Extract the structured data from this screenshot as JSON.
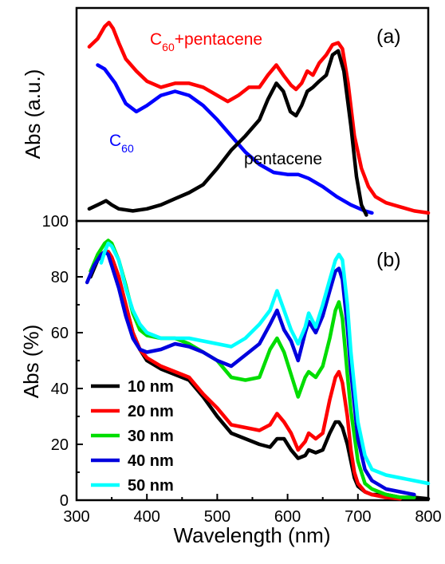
{
  "chart_data": [
    {
      "type": "line",
      "panel_label": "(a)",
      "ylabel": "Abs (a.u.)",
      "xlim": [
        300,
        800
      ],
      "yticks_visible": false,
      "annotations": [
        {
          "text": "C",
          "sub": "60",
          "suffix": "+pentacene",
          "color": "#ff0000"
        },
        {
          "text": "C",
          "sub": "60",
          "suffix": "",
          "color": "#0000ff"
        },
        {
          "text": "pentacene",
          "sub": "",
          "suffix": "",
          "color": "#000000"
        }
      ],
      "series": [
        {
          "color": "#ff0000",
          "x": [
            318,
            330,
            340,
            346,
            352,
            360,
            370,
            385,
            400,
            420,
            440,
            460,
            480,
            500,
            515,
            530,
            545,
            560,
            572,
            584,
            594,
            605,
            612,
            620,
            628,
            636,
            645,
            655,
            664,
            672,
            678,
            686,
            695,
            705,
            715,
            725,
            740,
            760,
            780,
            800
          ],
          "y": [
            0.84,
            0.88,
            0.94,
            0.96,
            0.93,
            0.86,
            0.78,
            0.72,
            0.67,
            0.64,
            0.66,
            0.66,
            0.64,
            0.6,
            0.57,
            0.6,
            0.64,
            0.64,
            0.7,
            0.75,
            0.7,
            0.65,
            0.63,
            0.66,
            0.72,
            0.7,
            0.76,
            0.8,
            0.85,
            0.86,
            0.83,
            0.66,
            0.4,
            0.24,
            0.15,
            0.1,
            0.07,
            0.05,
            0.03,
            0.02
          ]
        },
        {
          "color": "#0000ff",
          "x": [
            330,
            340,
            355,
            370,
            385,
            400,
            420,
            440,
            460,
            480,
            500,
            520,
            540,
            560,
            580,
            600,
            615,
            630,
            650,
            670,
            690,
            710,
            720
          ],
          "y": [
            0.75,
            0.73,
            0.66,
            0.56,
            0.52,
            0.55,
            0.6,
            0.62,
            0.6,
            0.55,
            0.48,
            0.4,
            0.32,
            0.26,
            0.22,
            0.21,
            0.21,
            0.19,
            0.15,
            0.1,
            0.06,
            0.03,
            0.02
          ]
        },
        {
          "color": "#000000",
          "x": [
            318,
            330,
            342,
            350,
            360,
            380,
            400,
            420,
            440,
            460,
            480,
            500,
            520,
            540,
            560,
            572,
            584,
            594,
            604,
            612,
            620,
            628,
            636,
            645,
            655,
            664,
            672,
            680,
            690,
            698,
            705,
            712
          ],
          "y": [
            0.04,
            0.06,
            0.08,
            0.06,
            0.04,
            0.03,
            0.04,
            0.06,
            0.09,
            0.12,
            0.16,
            0.24,
            0.33,
            0.4,
            0.48,
            0.58,
            0.66,
            0.62,
            0.52,
            0.5,
            0.55,
            0.62,
            0.64,
            0.67,
            0.7,
            0.8,
            0.82,
            0.72,
            0.45,
            0.2,
            0.06,
            0.01
          ]
        }
      ]
    },
    {
      "type": "line",
      "panel_label": "(b)",
      "xlabel": "Wavelength (nm)",
      "ylabel": "Abs (%)",
      "xlim": [
        300,
        800
      ],
      "ylim": [
        0,
        100
      ],
      "xticks": [
        300,
        400,
        500,
        600,
        700,
        800
      ],
      "yticks": [
        0,
        20,
        40,
        60,
        80,
        100
      ],
      "legend_position": "lower-left",
      "series": [
        {
          "name": "10 nm",
          "color": "#000000",
          "x": [
            320,
            330,
            340,
            345,
            350,
            360,
            370,
            380,
            390,
            400,
            420,
            440,
            460,
            480,
            500,
            520,
            540,
            560,
            575,
            585,
            595,
            605,
            615,
            625,
            630,
            640,
            650,
            660,
            668,
            673,
            678,
            685,
            690,
            695,
            700,
            710,
            720,
            740,
            760,
            780,
            800
          ],
          "y": [
            80,
            86,
            89,
            89,
            87,
            80,
            70,
            60,
            54,
            50,
            47,
            45,
            43,
            37,
            30,
            24,
            22,
            20,
            19,
            22,
            22,
            18,
            15,
            16,
            18,
            17,
            18,
            24,
            28,
            28,
            26,
            20,
            14,
            8,
            5,
            3,
            2,
            2,
            1,
            1,
            0.5
          ]
        },
        {
          "name": "20 nm",
          "color": "#ff0000",
          "x": [
            320,
            330,
            340,
            345,
            350,
            360,
            370,
            380,
            390,
            400,
            420,
            440,
            460,
            480,
            500,
            520,
            540,
            560,
            575,
            585,
            595,
            605,
            615,
            625,
            630,
            640,
            650,
            660,
            668,
            673,
            678,
            685,
            690,
            695,
            700,
            710,
            720,
            740,
            760
          ],
          "y": [
            82,
            87,
            89,
            89,
            87,
            80,
            70,
            60,
            54,
            51,
            48,
            46,
            44,
            38,
            33,
            27,
            26,
            25,
            27,
            31,
            28,
            24,
            18,
            21,
            24,
            22,
            24,
            36,
            44,
            46,
            42,
            30,
            18,
            10,
            6,
            3,
            2,
            1,
            0.5
          ]
        },
        {
          "name": "30 nm",
          "color": "#00dd00",
          "x": [
            320,
            330,
            340,
            345,
            350,
            360,
            370,
            380,
            390,
            400,
            420,
            440,
            460,
            480,
            500,
            520,
            540,
            560,
            575,
            585,
            595,
            605,
            615,
            625,
            630,
            640,
            650,
            660,
            668,
            673,
            678,
            685,
            690,
            700,
            710,
            720,
            740,
            760,
            780
          ],
          "y": [
            82,
            88,
            92,
            93,
            92,
            86,
            77,
            67,
            61,
            59,
            58,
            58,
            56,
            53,
            50,
            44,
            43,
            44,
            54,
            58,
            53,
            45,
            37,
            44,
            46,
            44,
            48,
            58,
            68,
            71,
            65,
            45,
            32,
            14,
            6,
            4,
            2,
            1,
            1
          ]
        },
        {
          "name": "40 nm",
          "color": "#0000dd",
          "x": [
            315,
            325,
            335,
            340,
            345,
            350,
            360,
            370,
            380,
            390,
            400,
            420,
            440,
            460,
            480,
            500,
            520,
            540,
            560,
            575,
            585,
            595,
            605,
            615,
            625,
            630,
            640,
            650,
            660,
            668,
            673,
            678,
            685,
            690,
            700,
            710,
            720,
            740,
            760,
            780
          ],
          "y": [
            78,
            84,
            88,
            89,
            88,
            84,
            76,
            66,
            58,
            54,
            53,
            54,
            56,
            55,
            53,
            50,
            48,
            52,
            56,
            63,
            68,
            61,
            57,
            50,
            60,
            64,
            60,
            66,
            75,
            82,
            83,
            79,
            62,
            46,
            22,
            11,
            7,
            4,
            3,
            2
          ]
        },
        {
          "name": "50 nm",
          "color": "#00ffff",
          "x": [
            335,
            340,
            345,
            350,
            360,
            370,
            380,
            390,
            400,
            420,
            440,
            460,
            480,
            500,
            520,
            540,
            560,
            575,
            585,
            595,
            605,
            615,
            625,
            630,
            640,
            650,
            660,
            668,
            673,
            678,
            685,
            690,
            700,
            710,
            720,
            740,
            760,
            780,
            800
          ],
          "y": [
            85,
            89,
            92,
            91,
            86,
            76,
            68,
            63,
            60,
            58,
            58,
            58,
            57,
            56,
            55,
            58,
            63,
            68,
            75,
            68,
            61,
            56,
            62,
            67,
            62,
            70,
            79,
            86,
            88,
            86,
            70,
            53,
            28,
            16,
            11,
            9,
            8,
            7,
            6
          ]
        }
      ]
    }
  ]
}
